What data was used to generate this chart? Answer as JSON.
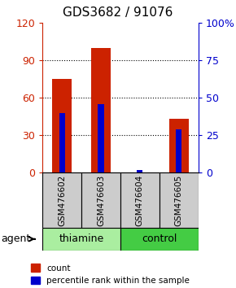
{
  "title": "GDS3682 / 91076",
  "samples": [
    "GSM476602",
    "GSM476603",
    "GSM476604",
    "GSM476605"
  ],
  "red_values": [
    75,
    100,
    0,
    43
  ],
  "blue_values": [
    40,
    46,
    2,
    29
  ],
  "left_ylim": [
    0,
    120
  ],
  "right_ylim": [
    0,
    100
  ],
  "left_yticks": [
    0,
    30,
    60,
    90,
    120
  ],
  "right_yticks": [
    0,
    25,
    50,
    75,
    100
  ],
  "right_yticklabels": [
    "0",
    "25",
    "50",
    "75",
    "100%"
  ],
  "left_color": "#cc2200",
  "right_color": "#0000cc",
  "gray_bg": "#cccccc",
  "thiamine_color": "#aaeea0",
  "control_color": "#44cc44",
  "legend_red_label": "count",
  "legend_blue_label": "percentile rank within the sample",
  "group_spans": [
    {
      "label": "thiamine",
      "start": 0,
      "end": 2,
      "color": "#aaeea0"
    },
    {
      "label": "control",
      "start": 2,
      "end": 4,
      "color": "#44cc44"
    }
  ]
}
